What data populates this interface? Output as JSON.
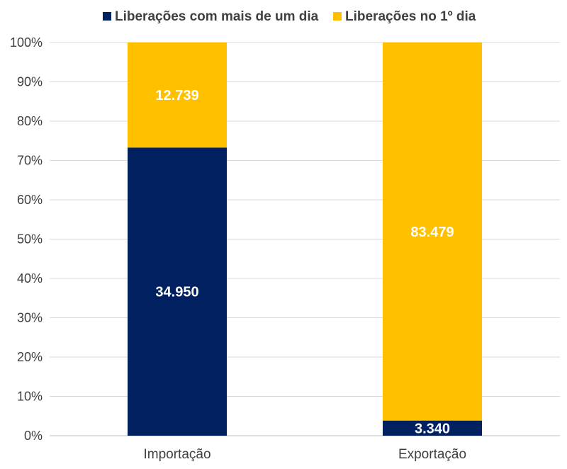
{
  "chart_data": {
    "type": "bar",
    "stacked": true,
    "normalized": true,
    "categories": [
      "Importação",
      "Exportação"
    ],
    "series": [
      {
        "name": "Liberações com mais de um dia",
        "values": [
          34950,
          3340
        ],
        "labels": [
          "34.950",
          "3.340"
        ],
        "color": "#002060"
      },
      {
        "name": "Liberações no 1º dia",
        "values": [
          12739,
          83479
        ],
        "labels": [
          "12.739",
          "83.479"
        ],
        "color": "#FFC000"
      }
    ],
    "y_ticks": [
      "0%",
      "10%",
      "20%",
      "30%",
      "40%",
      "50%",
      "60%",
      "70%",
      "80%",
      "90%",
      "100%"
    ],
    "ylim": [
      0,
      100
    ],
    "grid": true,
    "legend_position": "top"
  }
}
